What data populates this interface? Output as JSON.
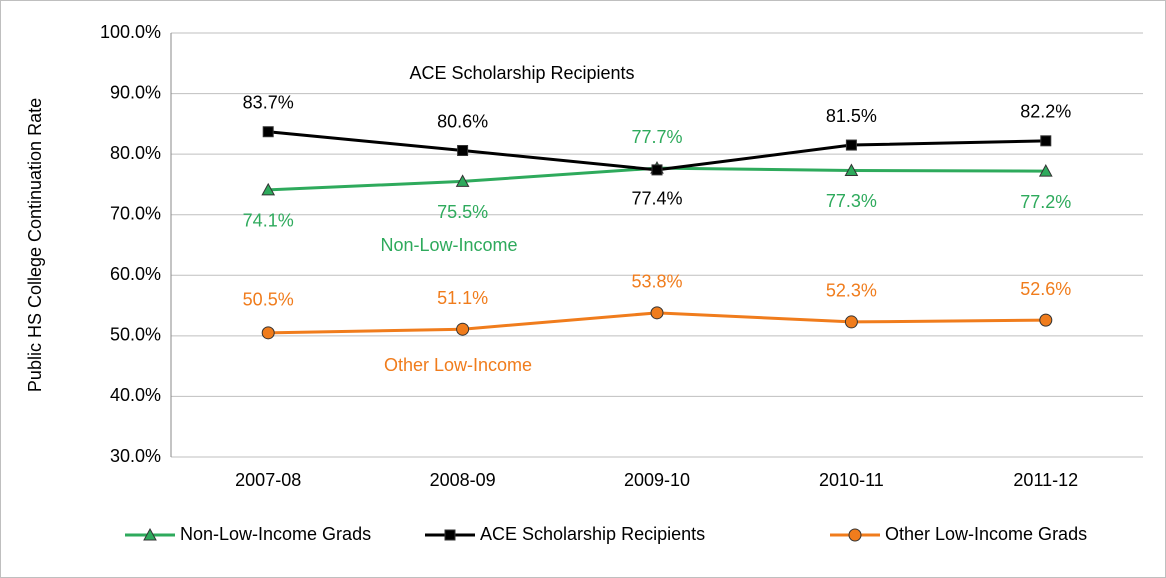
{
  "chart_data": {
    "type": "line",
    "y_axis_label": "Public HS College Continuation Rate",
    "categories": [
      "2007-08",
      "2008-09",
      "2009-10",
      "2010-11",
      "2011-12"
    ],
    "series": [
      {
        "name": "Non-Low-Income Grads",
        "color": "#2eaa5c",
        "marker": "triangle",
        "values": [
          74.1,
          75.5,
          77.7,
          77.3,
          77.2
        ],
        "value_labels": [
          "74.1%",
          "75.5%",
          "77.7%",
          "77.3%",
          "77.2%"
        ]
      },
      {
        "name": "ACE Scholarship Recipients",
        "color": "#000000",
        "marker": "square",
        "values": [
          83.7,
          80.6,
          77.4,
          81.5,
          82.2
        ],
        "value_labels": [
          "83.7%",
          "80.6%",
          "77.4%",
          "81.5%",
          "82.2%"
        ]
      },
      {
        "name": "Other Low-Income Grads",
        "color": "#f07c1c",
        "marker": "circle",
        "values": [
          50.5,
          51.1,
          53.8,
          52.3,
          52.6
        ],
        "value_labels": [
          "50.5%",
          "51.1%",
          "53.8%",
          "52.3%",
          "52.6%"
        ]
      }
    ],
    "annotations": [
      "ACE Scholarship Recipients",
      "Non-Low-Income",
      "Other Low-Income"
    ],
    "ylim": [
      30,
      100
    ],
    "yticks": [
      {
        "value": 30,
        "label": "30.0%"
      },
      {
        "value": 40,
        "label": "40.0%"
      },
      {
        "value": 50,
        "label": "50.0%"
      },
      {
        "value": 60,
        "label": "60.0%"
      },
      {
        "value": 70,
        "label": "70.0%"
      },
      {
        "value": 80,
        "label": "80.0%"
      },
      {
        "value": 90,
        "label": "90.0%"
      },
      {
        "value": 100,
        "label": "100.0%"
      }
    ],
    "grid": true,
    "legend": "bottom"
  }
}
